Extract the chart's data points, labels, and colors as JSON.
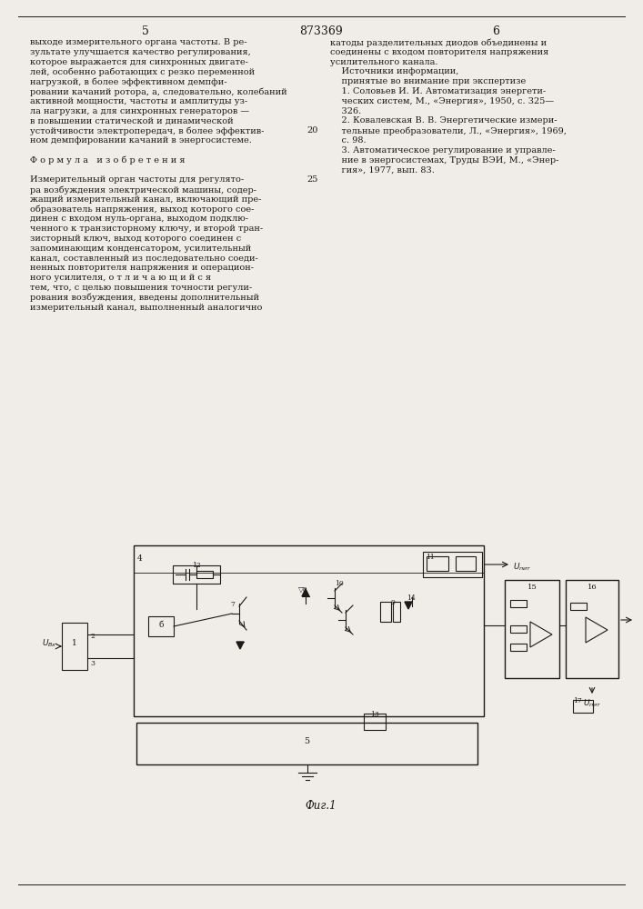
{
  "bg_color": "#f0ede8",
  "text_color": "#1a1a1a",
  "left_col_text": [
    "выходе измерительного органа частоты. В ре-",
    "зультате улучшается качество регулирования,",
    "которое выражается для синхронных двигате-",
    "лей, особенно работающих с резко переменной",
    "нагрузкой, в более эффективном демпфи-",
    "ровании качаний ротора, а, следовательно, колебаний",
    "активной мощности, частоты и амплитуды уз-",
    "ла нагрузки, а для синхронных генераторов —",
    "в повышении статической и динамической",
    "устойчивости электропередач, в более эффектив-",
    "ном демпфировании качаний в энергосистеме.",
    "",
    "Ф о р м у л а   и з о б р е т е н и я",
    "",
    "Измерительный орган частоты для регулято-",
    "ра возбуждения электрической машины, содер-",
    "жащий измерительный канал, включающий пре-",
    "образователь напряжения, выход которого сое-",
    "динен с входом нуль-органа, выходом подклю-",
    "ченного к транзисторному ключу, и второй тран-",
    "зисторный ключ, выход которого соединен с",
    "запоминающим конденсатором, усилительный",
    "канал, составленный из последовательно соеди-",
    "ненных повторителя напряжения и операцион-",
    "ного усилителя, о т л и ч а ю щ и й с я",
    "тем, что, с целью повышения точности регули-",
    "рования возбуждения, введены дополнительный",
    "измерительный канал, выполненный аналогично "
  ],
  "right_col_text": [
    "катоды разделительных диодов объединены и",
    "соединены с входом повторителя напряжения",
    "усилительного канала.",
    "    Источники информации,",
    "    принятые во внимание при экспертизе",
    "    1. Соловьев И. И. Автоматизация энергети-",
    "    ческих систем, М., «Энергия», 1950, с. 325—",
    "    326.",
    "    2. Ковалевская В. В. Энергетические измери-",
    "    тельные преобразователи, Л., «Энергия», 1969,",
    "    с. 98.",
    "    3. Автоматическое регулирование и управле-",
    "    ние в энергосистемах, Труды ВЭИ, М., «Энер-",
    "    гия», 1977, вып. 83."
  ]
}
